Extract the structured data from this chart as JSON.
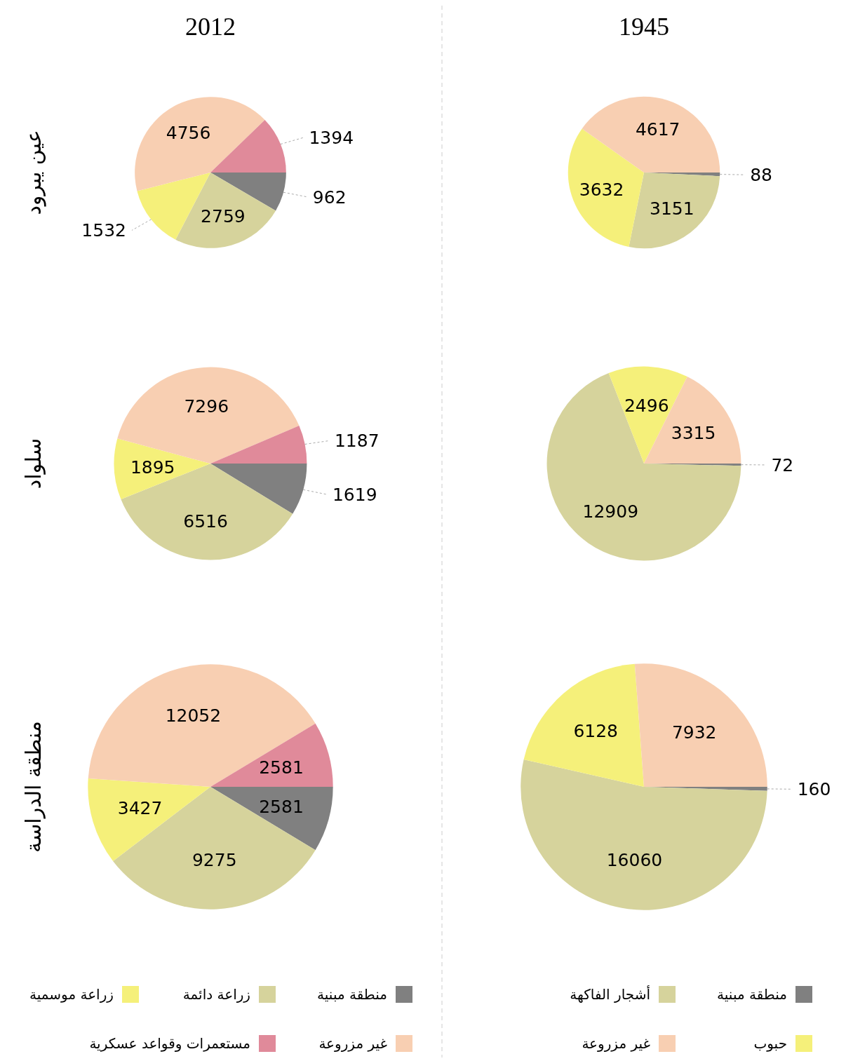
{
  "chart_data": [
    {
      "type": "pie",
      "title": "2012",
      "ylabel": "عين يبرود",
      "categories": [
        null,
        null,
        null,
        null,
        null
      ],
      "values": [
        962,
        2759,
        1532,
        4756,
        1394
      ],
      "colors": [
        "#808080",
        "#d6d39c",
        "#f5f07a",
        "#f8cfb2",
        "#e08a9a"
      ],
      "data_labels": true,
      "legend": false
    },
    {
      "type": "pie",
      "title": "1945",
      "categories": [
        null,
        null,
        null,
        null
      ],
      "values": [
        88,
        3151,
        3632,
        4617
      ],
      "colors": [
        "#808080",
        "#d6d39c",
        "#f5f07a",
        "#f8cfb2"
      ],
      "data_labels": true,
      "legend": false
    },
    {
      "type": "pie",
      "ylabel": "سلواد",
      "categories": [
        null,
        null,
        null,
        null,
        null
      ],
      "values": [
        1619,
        6516,
        1895,
        7296,
        1187
      ],
      "colors": [
        "#808080",
        "#d6d39c",
        "#f5f07a",
        "#f8cfb2",
        "#e08a9a"
      ],
      "data_labels": true,
      "legend": false
    },
    {
      "type": "pie",
      "categories": [
        null,
        null,
        null,
        null
      ],
      "values": [
        72,
        12909,
        2496,
        3315
      ],
      "colors": [
        "#808080",
        "#d6d39c",
        "#f5f07a",
        "#f8cfb2"
      ],
      "data_labels": true,
      "legend": false
    },
    {
      "type": "pie",
      "ylabel": "منطقة الدراسة",
      "categories": [
        "منطقة مبنية",
        "زراعة دائمة",
        "زراعة موسمية",
        "غير مزروعة",
        "مستعمرات وقواعد عسكرية"
      ],
      "values": [
        2581,
        9275,
        3427,
        12052,
        2581
      ],
      "colors": [
        "#808080",
        "#d6d39c",
        "#f5f07a",
        "#f8cfb2",
        "#e08a9a"
      ],
      "data_labels": true,
      "legend": "bottom"
    },
    {
      "type": "pie",
      "categories": [
        "منطقة مبنية",
        "أشجار الفاكهة",
        "حبوب",
        "غير مزروعة"
      ],
      "values": [
        160,
        16060,
        6128,
        7932
      ],
      "colors": [
        "#808080",
        "#d6d39c",
        "#f5f07a",
        "#f8cfb2"
      ],
      "data_labels": true,
      "legend": "bottom"
    }
  ]
}
